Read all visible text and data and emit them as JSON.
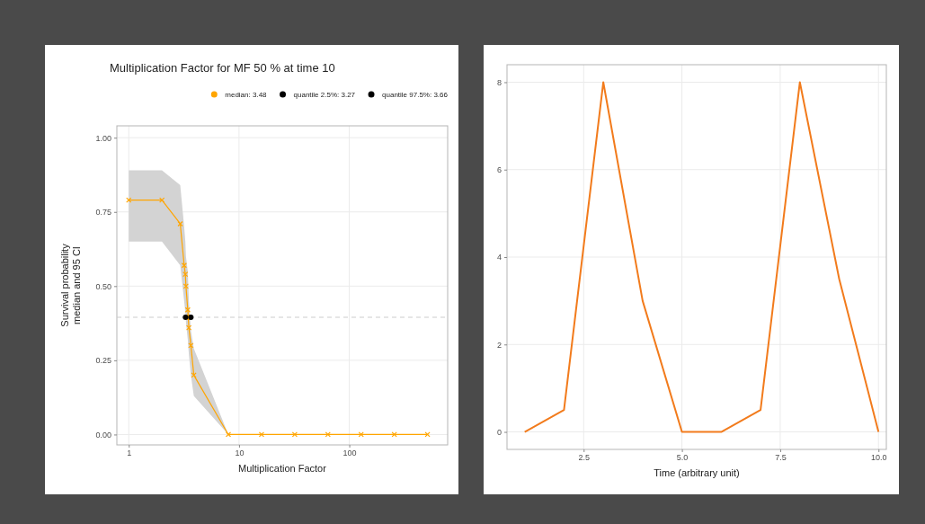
{
  "chart_data": [
    {
      "type": "line",
      "title": "Multiplication Factor for MF 50 % at time 10",
      "xlabel": "Multiplication Factor",
      "ylabel": "Survival probability\nmedian and 95 CI",
      "log": "x",
      "grid": true,
      "legend": "top",
      "x": [
        1,
        2,
        2.93,
        3.18,
        3.26,
        3.3,
        3.43,
        3.51,
        3.66,
        3.89,
        8,
        16,
        32,
        64,
        128,
        256,
        512
      ],
      "xlim": [
        0.78,
        780
      ],
      "xticks": [
        1,
        10,
        100
      ],
      "ylim": [
        -0.035,
        1.04
      ],
      "yticks": [
        {
          "value": 0,
          "label": "0.00"
        },
        {
          "value": 0.25,
          "label": "0.25"
        },
        {
          "value": 0.5,
          "label": "0.50"
        },
        {
          "value": 0.75,
          "label": "0.75"
        },
        {
          "value": 1,
          "label": "1.00"
        }
      ],
      "ref_lines": [
        {
          "axis": "y",
          "value": 0.395,
          "color": "#cccccc",
          "line_style": "dashed"
        }
      ],
      "series": [
        {
          "type": "line",
          "color": "#ffa500",
          "marker": "cross",
          "values": [
            0.79,
            0.79,
            0.71,
            0.57,
            0.54,
            0.5,
            0.42,
            0.36,
            0.3,
            0.2,
            0,
            0,
            0,
            0,
            0,
            0,
            0
          ],
          "lower": [
            0.65,
            0.65,
            0.57,
            0.45,
            0.41,
            0.38,
            0.32,
            0.27,
            0.2,
            0.13,
            0,
            0,
            0,
            0,
            0,
            0,
            0
          ],
          "upper": [
            0.89,
            0.89,
            0.84,
            0.7,
            0.65,
            0.6,
            0.55,
            0.45,
            0.35,
            0.29,
            0,
            0,
            0,
            0,
            0,
            0,
            0
          ]
        },
        {
          "type": "scatter",
          "name": "median:  3.48",
          "color": "#ffa500",
          "marker": "circle",
          "x": [
            3.48
          ],
          "values": [
            0.395
          ]
        },
        {
          "type": "scatter",
          "name": "quantile 2.5%:  3.27",
          "color": "#000000",
          "marker": "circle",
          "x": [
            3.27
          ],
          "values": [
            0.395
          ]
        },
        {
          "type": "scatter",
          "name": "quantile 97.5%:  3.66",
          "color": "#000000",
          "marker": "circle",
          "x": [
            3.66
          ],
          "values": [
            0.395
          ]
        }
      ]
    },
    {
      "type": "line",
      "xlabel": "Time (arbitrary unit)",
      "grid": true,
      "x": [
        1,
        2,
        3,
        4,
        5,
        6,
        7,
        8,
        9,
        10
      ],
      "xlim": [
        0.55,
        10.2
      ],
      "xticks": [
        {
          "value": 2.5,
          "label": "2.5"
        },
        {
          "value": 5,
          "label": "5.0"
        },
        {
          "value": 7.5,
          "label": "7.5"
        },
        {
          "value": 10,
          "label": "10.0"
        }
      ],
      "ylim": [
        -0.4,
        8.4
      ],
      "yticks": [
        0,
        2,
        4,
        6,
        8
      ],
      "series": [
        {
          "color": "#f27b1c",
          "values": [
            0,
            0.5,
            8,
            3,
            0,
            0,
            0.5,
            8,
            3.5,
            0
          ]
        }
      ]
    }
  ]
}
